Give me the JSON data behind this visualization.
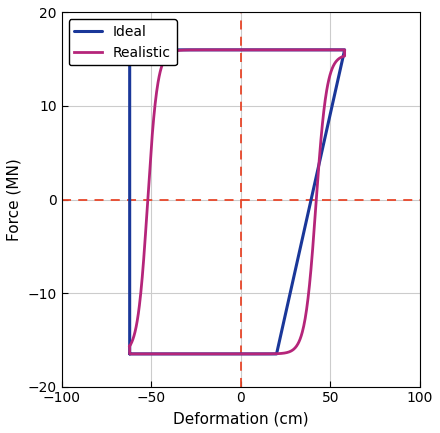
{
  "title": "",
  "xlabel": "Deformation (cm)",
  "ylabel": "Force (MN)",
  "xlim": [
    -100,
    100
  ],
  "ylim": [
    -20,
    20
  ],
  "xticks": [
    -100,
    -50,
    0,
    50,
    100
  ],
  "yticks": [
    -20,
    -10,
    0,
    10,
    20
  ],
  "ideal_color": "#1a3799",
  "realistic_color": "#b5257a",
  "dashed_color": "#e8472a",
  "ideal_lw": 2.2,
  "realistic_lw": 2.0,
  "ideal_label": "Ideal",
  "realistic_label": "Realistic",
  "bg_color": "#ffffff",
  "grid_color": "#cccccc"
}
